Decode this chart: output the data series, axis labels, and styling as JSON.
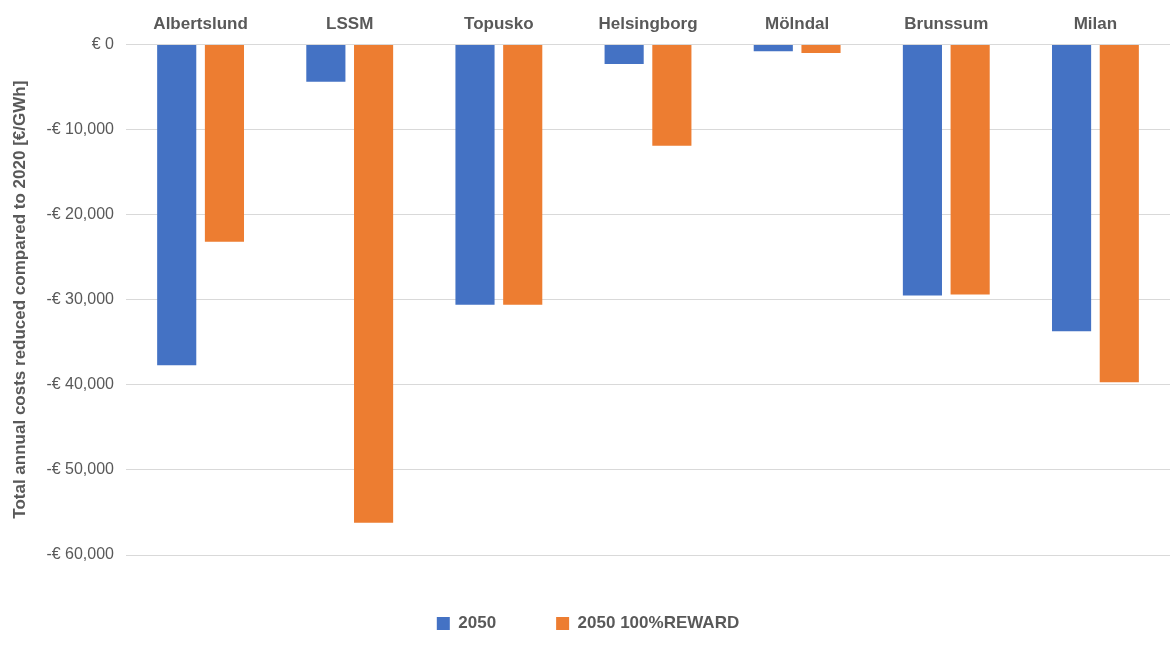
{
  "chart_data": {
    "type": "bar",
    "ylabel": "Total annual costs reduced compared to 2020 [€/GWh]",
    "categories": [
      "Albertslund",
      "LSSM",
      "Topusko",
      "Helsingborg",
      "Mölndal",
      "Brunssum",
      "Milan"
    ],
    "series": [
      {
        "name": "2050",
        "color": "#4472c4",
        "values": [
          -37700,
          -4400,
          -30600,
          -2300,
          -800,
          -29500,
          -33700
        ]
      },
      {
        "name": "2050 100%REWARD",
        "color": "#ed7d31",
        "values": [
          -23200,
          -56200,
          -30600,
          -11900,
          -1000,
          -29400,
          -39700
        ]
      }
    ],
    "ylim": [
      -60000,
      0
    ],
    "yticks": [
      {
        "value": -60000,
        "label": "-€ 60,000"
      },
      {
        "value": -50000,
        "label": "-€ 50,000"
      },
      {
        "value": -40000,
        "label": "-€ 40,000"
      },
      {
        "value": -30000,
        "label": "-€ 30,000"
      },
      {
        "value": -20000,
        "label": "-€ 20,000"
      },
      {
        "value": -10000,
        "label": "-€ 10,000"
      },
      {
        "value": 0,
        "label": "€ 0"
      }
    ],
    "grid": "y",
    "legend": "bottom"
  }
}
